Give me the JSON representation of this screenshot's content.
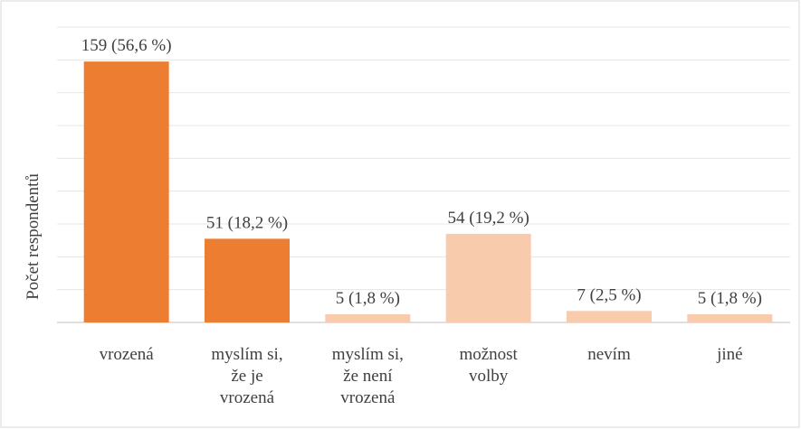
{
  "chart_data": {
    "type": "bar",
    "y_label": "Počet respondentů",
    "categories": [
      "vrozená",
      "myslím si,\nže je\nvrozená",
      "myslím si,\nže není\nvrozená",
      "možnost\nvolby",
      "nevím",
      "jiné"
    ],
    "values": [
      159,
      51,
      5,
      54,
      7,
      5
    ],
    "value_labels": [
      "159 (56,6 %)",
      "51 (18,2 %)",
      "5 (1,8 %)",
      "54 (19,2 %)",
      "7 (2,5 %)",
      "5 (1,8 %)"
    ],
    "colors": [
      "#ed7d31",
      "#ed7d31",
      "#f8cbad",
      "#f8cbad",
      "#f8cbad",
      "#f8cbad"
    ],
    "ylim": [
      0,
      180
    ],
    "yticks": [
      0,
      20,
      40,
      60,
      80,
      100,
      120,
      140,
      160,
      180
    ],
    "grid": true
  }
}
